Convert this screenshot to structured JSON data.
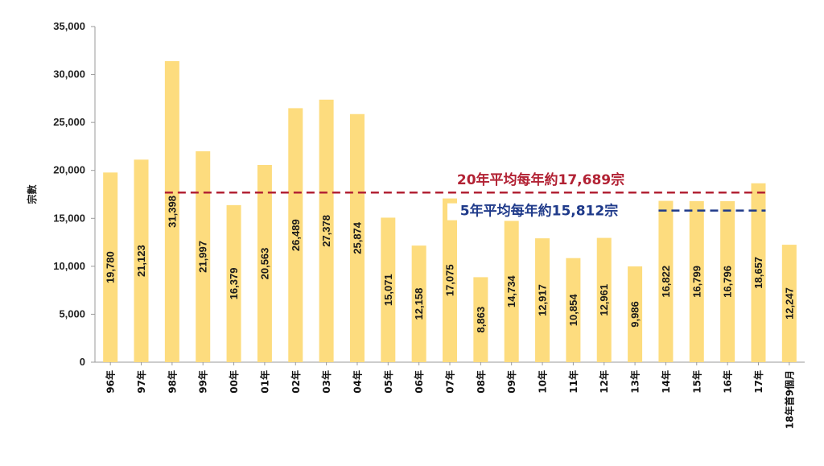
{
  "chart_data": {
    "type": "bar",
    "ylabel": "宗數",
    "xlabel": "",
    "ylim": [
      0,
      35000
    ],
    "y_ticks": [
      "0",
      "5,000",
      "10,000",
      "15,000",
      "20,000",
      "25,000",
      "30,000",
      "35,000"
    ],
    "y_tick_values": [
      0,
      5000,
      10000,
      15000,
      20000,
      25000,
      30000,
      35000
    ],
    "grid": false,
    "bar_color": "#FDDC7E",
    "categories": [
      "96年",
      "97年",
      "98年",
      "99年",
      "00年",
      "01年",
      "02年",
      "03年",
      "04年",
      "05年",
      "06年",
      "07年",
      "08年",
      "09年",
      "10年",
      "11年",
      "12年",
      "13年",
      "14年",
      "15年",
      "16年",
      "17年",
      "18年首9個月"
    ],
    "values": [
      19780,
      21123,
      31398,
      21997,
      16379,
      20563,
      26489,
      27378,
      25874,
      15071,
      12158,
      17075,
      8863,
      14734,
      12917,
      10854,
      12961,
      9986,
      16822,
      16799,
      16796,
      18657,
      12247
    ],
    "value_labels": [
      "19,780",
      "21,123",
      "31,398",
      "21,997",
      "16,379",
      "20,563",
      "26,489",
      "27,378",
      "25,874",
      "15,071",
      "12,158",
      "17,075",
      "8,863",
      "14,734",
      "12,917",
      "10,854",
      "12,961",
      "9,986",
      "16,822",
      "16,799",
      "16,796",
      "18,657",
      "12,247"
    ],
    "reference_lines": [
      {
        "label": "20年平均每年約17,689宗",
        "value": 17689,
        "color": "#B22234",
        "from_index": 2,
        "to_index": 21
      },
      {
        "label": "5年平均每年約15,812宗",
        "value": 15812,
        "color": "#1F3A8A",
        "from_index": 18,
        "to_index": 21
      }
    ]
  }
}
